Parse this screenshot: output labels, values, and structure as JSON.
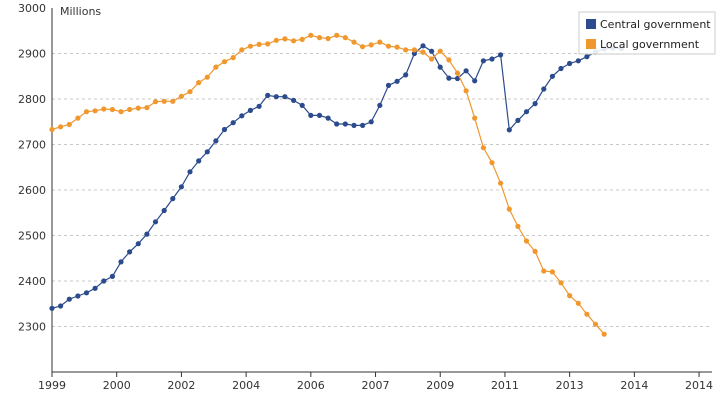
{
  "chart_data": {
    "type": "line",
    "y_unit_label": "Millions",
    "ylim": [
      2200,
      3000
    ],
    "y_ticks": [
      3000,
      2900,
      2800,
      2700,
      2600,
      2500,
      2400,
      2300
    ],
    "xlim": [
      1999.0,
      2014.3
    ],
    "x_ticks": [
      {
        "label": "1999",
        "x": 1999.0
      },
      {
        "label": "2000",
        "x": 2000.5
      },
      {
        "label": "2002",
        "x": 2002.0
      },
      {
        "label": "2004",
        "x": 2003.5
      },
      {
        "label": "2006",
        "x": 2005.0
      },
      {
        "label": "2007",
        "x": 2006.5
      },
      {
        "label": "2009",
        "x": 2008.0
      },
      {
        "label": "2011",
        "x": 2009.5
      },
      {
        "label": "2013",
        "x": 2011.0
      },
      {
        "label": "2014",
        "x": 2012.5
      },
      {
        "label": "2014",
        "x": 2014.0
      }
    ],
    "grid": "horizontal",
    "legend_position": "top-right",
    "series": [
      {
        "name": "Central government",
        "color": "#2b4b8c",
        "x": [
          1999.0,
          1999.2,
          1999.4,
          1999.6,
          1999.8,
          2000.0,
          2000.2,
          2000.4,
          2000.6,
          2000.8,
          2001.0,
          2001.2,
          2001.4,
          2001.6,
          2001.8,
          2002.0,
          2002.2,
          2002.4,
          2002.6,
          2002.8,
          2003.0,
          2003.2,
          2003.4,
          2003.6,
          2003.8,
          2004.0,
          2004.2,
          2004.4,
          2004.6,
          2004.8,
          2005.0,
          2005.2,
          2005.4,
          2005.6,
          2005.8,
          2006.0,
          2006.2,
          2006.4,
          2006.6,
          2006.8,
          2007.0,
          2007.2,
          2007.4,
          2007.6,
          2007.8,
          2008.0,
          2008.2,
          2008.4,
          2008.6,
          2008.8,
          2009.0,
          2009.2,
          2009.4,
          2009.6,
          2009.8,
          2010.0,
          2010.2,
          2010.4,
          2010.6,
          2010.8,
          2011.0,
          2011.2,
          2011.4,
          2011.6,
          2011.8,
          2012.0,
          2012.2,
          2012.4,
          2012.6,
          2012.8,
          2013.0,
          2013.2,
          2013.4,
          2013.6,
          2013.8,
          2014.0,
          2014.2
        ],
        "values": [
          2340,
          2345,
          2360,
          2367,
          2374,
          2384,
          2400,
          2410,
          2442,
          2464,
          2482,
          2503,
          2530,
          2555,
          2581,
          2607,
          2640,
          2664,
          2684,
          2708,
          2733,
          2748,
          2763,
          2775,
          2784,
          2808,
          2805,
          2805,
          2797,
          2786,
          2764,
          2764,
          2758,
          2745,
          2745,
          2742,
          2742,
          2750,
          2786,
          2830,
          2839,
          2853,
          2900,
          2917,
          2905,
          2870,
          2846,
          2845,
          2862,
          2840,
          2884,
          2888,
          2897,
          2732,
          2753,
          2772,
          2790,
          2822,
          2850,
          2867,
          2878,
          2884,
          2893,
          2903,
          2910,
          2912,
          2911,
          null,
          null,
          null,
          null,
          null,
          null,
          null,
          null,
          null,
          null
        ]
      },
      {
        "name": "Local government",
        "color": "#f0982e",
        "x": [
          1999.0,
          1999.2,
          1999.4,
          1999.6,
          1999.8,
          2000.0,
          2000.2,
          2000.4,
          2000.6,
          2000.8,
          2001.0,
          2001.2,
          2001.4,
          2001.6,
          2001.8,
          2002.0,
          2002.2,
          2002.4,
          2002.6,
          2002.8,
          2003.0,
          2003.2,
          2003.4,
          2003.6,
          2003.8,
          2004.0,
          2004.2,
          2004.4,
          2004.6,
          2004.8,
          2005.0,
          2005.2,
          2005.4,
          2005.6,
          2005.8,
          2006.0,
          2006.2,
          2006.4,
          2006.6,
          2006.8,
          2007.0,
          2007.2,
          2007.4,
          2007.6,
          2007.8,
          2008.0,
          2008.2,
          2008.4,
          2008.6,
          2008.8,
          2009.0,
          2009.2,
          2009.4,
          2009.6,
          2009.8,
          2010.0,
          2010.2,
          2010.4,
          2010.6,
          2010.8,
          2011.0,
          2011.2,
          2011.4,
          2011.6,
          2011.8,
          2012.0,
          2012.2,
          2012.4,
          2012.6,
          2012.8,
          2013.0,
          2013.2,
          2013.4,
          2013.6,
          2013.8,
          2014.0,
          2014.2
        ],
        "values": [
          2733,
          2739,
          2744,
          2758,
          2772,
          2774,
          2778,
          2777,
          2772,
          2777,
          2780,
          2781,
          2794,
          2795,
          2795,
          2806,
          2816,
          2836,
          2848,
          2870,
          2882,
          2891,
          2908,
          2916,
          2920,
          2921,
          2929,
          2932,
          2928,
          2931,
          2940,
          2935,
          2933,
          2940,
          2935,
          2925,
          2915,
          2919,
          2925,
          2916,
          2914,
          2908,
          2908,
          2903,
          2888,
          2905,
          2886,
          2857,
          2818,
          2758,
          2693,
          2660,
          2615,
          2558,
          2520,
          2488,
          2465,
          2422,
          2420,
          2396,
          2368,
          2351,
          2327,
          2305,
          2283,
          null,
          null,
          null,
          null,
          null,
          null,
          null,
          null,
          null,
          null,
          null,
          null
        ]
      }
    ]
  }
}
